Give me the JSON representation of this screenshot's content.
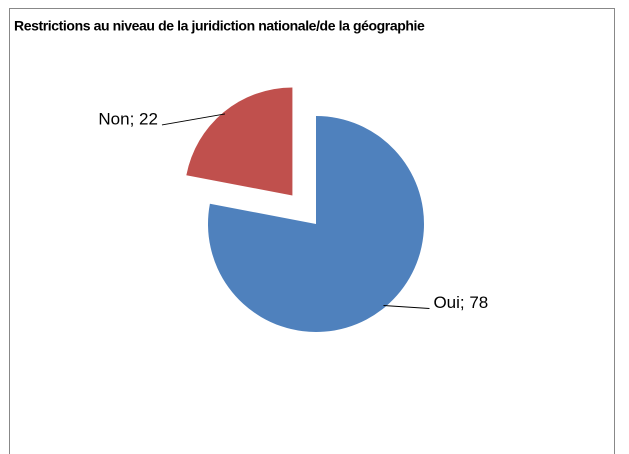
{
  "chart_data": {
    "type": "pie",
    "title": "Restrictions au niveau de la juridiction nationale/de la géographie",
    "categories": [
      "Oui",
      "Non"
    ],
    "values": [
      78,
      22
    ],
    "value_labels": [
      "Oui; 78",
      "Non; 22"
    ],
    "colors": [
      "#4f81bd",
      "#c0504d"
    ],
    "exploded": [
      false,
      true
    ]
  }
}
